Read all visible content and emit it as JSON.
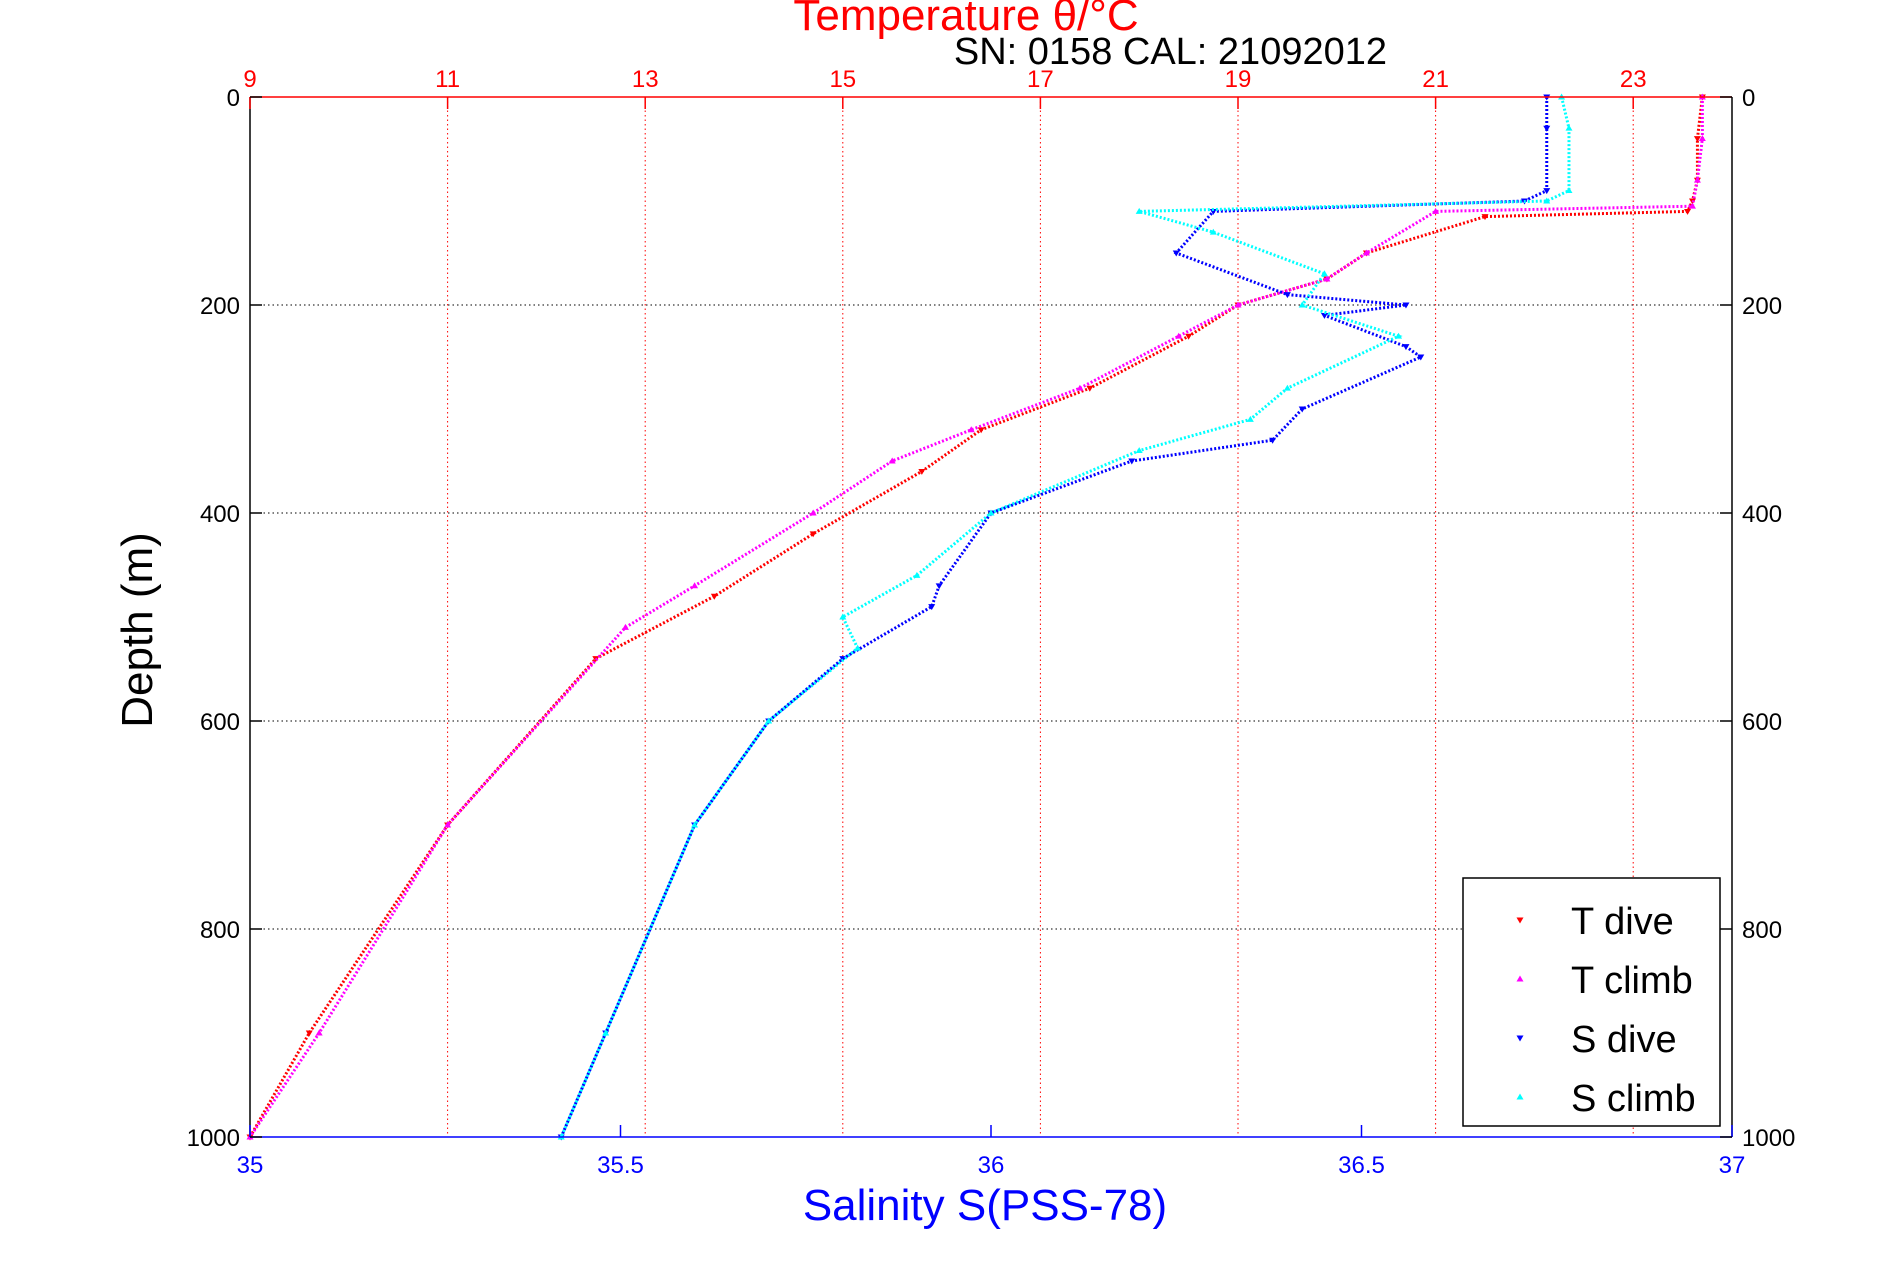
{
  "chart_data": {
    "type": "scatter",
    "title": "Temperature θ/°C",
    "subtitle": "SN: 0158  CAL: 21092012",
    "xlabel": "Salinity S(PSS-78)",
    "ylabel": "Depth (m)",
    "top_axis": {
      "label": "Temperature θ/°C",
      "range": [
        9,
        24
      ],
      "ticks": [
        "9",
        "11",
        "13",
        "15",
        "17",
        "19",
        "21",
        "23"
      ],
      "tick_values": [
        9,
        11,
        13,
        15,
        17,
        19,
        21,
        23
      ],
      "color": "#ff0000"
    },
    "bottom_axis": {
      "label": "Salinity S(PSS-78)",
      "range": [
        35,
        37
      ],
      "ticks": [
        "35",
        "35.5",
        "36",
        "36.5",
        "37"
      ],
      "tick_values": [
        35,
        35.5,
        36,
        36.5,
        37
      ],
      "color": "#0000ff"
    },
    "y_axis": {
      "range": [
        0,
        1000
      ],
      "reversed": true,
      "ticks": [
        "0",
        "200",
        "400",
        "600",
        "800",
        "1000"
      ],
      "tick_values": [
        0,
        200,
        400,
        600,
        800,
        1000
      ]
    },
    "grid": true,
    "legend_placement": "bottom-right",
    "series": [
      {
        "name": "T dive",
        "axis": "top",
        "color": "#ff0000",
        "marker": "triangle-down",
        "x": [
          23.7,
          23.65,
          23.65,
          23.6,
          23.55,
          21.5,
          20.3,
          19.9,
          19.0,
          18.5,
          17.5,
          16.4,
          15.8,
          14.7,
          13.7,
          12.5,
          11.0,
          9.6,
          9.0
        ],
        "y": [
          0,
          40,
          80,
          100,
          110,
          115,
          150,
          175,
          200,
          230,
          280,
          320,
          360,
          420,
          480,
          540,
          700,
          900,
          1000
        ]
      },
      {
        "name": "T climb",
        "axis": "top",
        "color": "#ff00ff",
        "marker": "triangle-up",
        "x": [
          23.7,
          23.7,
          23.65,
          23.6,
          21.0,
          20.3,
          19.9,
          19.0,
          18.4,
          17.4,
          16.3,
          15.5,
          14.7,
          13.5,
          12.8,
          11.0,
          9.7,
          9.0
        ],
        "y": [
          0,
          40,
          80,
          105,
          110,
          150,
          175,
          200,
          230,
          280,
          320,
          350,
          400,
          470,
          510,
          700,
          900,
          1000
        ]
      },
      {
        "name": "S dive",
        "axis": "bottom",
        "color": "#0000ff",
        "marker": "triangle-down",
        "x": [
          36.75,
          36.75,
          36.75,
          36.72,
          36.3,
          36.25,
          36.4,
          36.56,
          36.45,
          36.56,
          36.58,
          36.42,
          36.38,
          36.19,
          36.0,
          35.93,
          35.92,
          35.8,
          35.7,
          35.6,
          35.48,
          35.42
        ],
        "y": [
          0,
          30,
          90,
          100,
          110,
          150,
          190,
          200,
          210,
          240,
          250,
          300,
          330,
          350,
          400,
          470,
          490,
          540,
          600,
          700,
          900,
          1000
        ]
      },
      {
        "name": "S climb",
        "axis": "bottom",
        "color": "#00ffff",
        "marker": "triangle-up",
        "x": [
          36.77,
          36.78,
          36.78,
          36.75,
          36.2,
          36.3,
          36.45,
          36.42,
          36.55,
          36.4,
          36.35,
          36.2,
          36.0,
          35.9,
          35.8,
          35.82,
          35.7,
          35.6,
          35.48,
          35.42
        ],
        "y": [
          0,
          30,
          90,
          100,
          110,
          130,
          170,
          200,
          230,
          280,
          310,
          340,
          400,
          460,
          500,
          530,
          600,
          700,
          900,
          1000
        ]
      }
    ]
  }
}
